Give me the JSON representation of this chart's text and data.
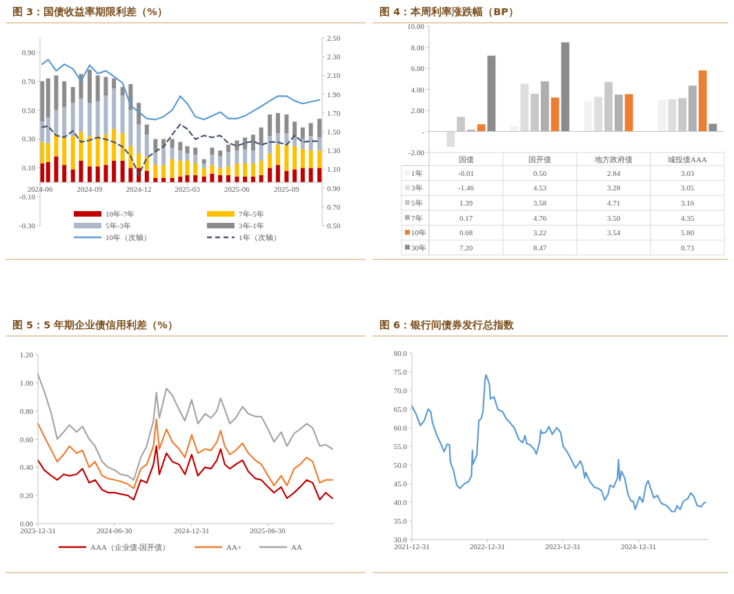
{
  "chart_data": [
    {
      "type": "bar",
      "title": "图 3：国债收益率期限利差（%）",
      "stacked": true,
      "legend": "bottom",
      "x": [
        "2024-06-05",
        "2024-06-16",
        "2024-07-01",
        "2024-07-16",
        "2024-08-01",
        "2024-08-16",
        "2024-09-01",
        "2024-09-16",
        "2024-10-01",
        "2024-10-16",
        "2024-11-01",
        "2024-11-16",
        "2024-12-01",
        "2024-12-16",
        "2025-01-01",
        "2025-01-16",
        "2025-02-01",
        "2025-02-16",
        "2025-03-01",
        "2025-03-16",
        "2025-04-01",
        "2025-04-16",
        "2025-05-01",
        "2025-05-16",
        "2025-06-01",
        "2025-06-16",
        "2025-07-01",
        "2025-07-16",
        "2025-08-01",
        "2025-08-16",
        "2025-09-01",
        "2025-09-16",
        "2025-10-01",
        "2025-10-16",
        "2025-11-01"
      ],
      "xlim": [
        "2024-06-01",
        "2025-11-06"
      ],
      "xticks": [
        "2024-06",
        "2024-09",
        "2024-12",
        "2025-03",
        "2025-06",
        "2025-09"
      ],
      "ylim": [
        -0.3,
        1.0
      ],
      "yticks": [
        {
          "value": 0.9,
          "label": "0.90"
        },
        {
          "value": 0.7,
          "label": "0.70"
        },
        {
          "value": 0.5,
          "label": "0.50"
        },
        {
          "value": 0.3,
          "label": "0.30"
        },
        {
          "value": 0.1,
          "label": "0.10"
        },
        {
          "value": -0.1,
          "label": "-0.10"
        },
        {
          "value": -0.3,
          "label": "-0.30"
        }
      ],
      "y2lim": [
        0.5,
        2.5
      ],
      "y2ticks": [
        {
          "value": 0.5,
          "label": "0.50"
        },
        {
          "value": 0.7,
          "label": "0.70"
        },
        {
          "value": 0.9,
          "label": "0.90"
        },
        {
          "value": 1.1,
          "label": "1.10"
        },
        {
          "value": 1.3,
          "label": "1.30"
        },
        {
          "value": 1.5,
          "label": "1.50"
        },
        {
          "value": 1.7,
          "label": "1.70"
        },
        {
          "value": 1.9,
          "label": "1.90"
        },
        {
          "value": 2.1,
          "label": "2.10"
        },
        {
          "value": 2.3,
          "label": "2.30"
        },
        {
          "value": 2.5,
          "label": "2.50"
        }
      ],
      "series": [
        {
          "name": "10年-7年",
          "color": "#c00000",
          "values": [
            0.13,
            0.14,
            0.18,
            0.12,
            0.09,
            0.15,
            0.11,
            0.11,
            0.12,
            0.15,
            0.15,
            0.1,
            0.1,
            0.08,
            0.03,
            0.03,
            0.03,
            0.04,
            0.05,
            0.05,
            0.04,
            0.06,
            0.05,
            0.05,
            0.04,
            0.04,
            0.04,
            0.05,
            0.1,
            0.12,
            0.08,
            0.09,
            0.1,
            0.1,
            0.1
          ]
        },
        {
          "name": "7年-5年",
          "color": "#ffc000",
          "values": [
            0.15,
            0.13,
            0.15,
            0.19,
            0.23,
            0.2,
            0.21,
            0.21,
            0.21,
            0.22,
            0.19,
            0.15,
            0.1,
            0.1,
            0.09,
            0.09,
            0.13,
            0.11,
            0.1,
            0.08,
            0.06,
            0.06,
            0.05,
            0.06,
            0.09,
            0.09,
            0.09,
            0.1,
            0.1,
            0.14,
            0.18,
            0.16,
            0.13,
            0.12,
            0.12
          ]
        },
        {
          "name": "5年-3年",
          "color": "#adb9ca",
          "values": [
            0.14,
            0.18,
            0.17,
            0.21,
            0.23,
            0.23,
            0.23,
            0.24,
            0.27,
            0.28,
            0.26,
            0.25,
            0.2,
            0.15,
            0.1,
            0.13,
            0.08,
            0.07,
            0.05,
            0.06,
            0.03,
            0.07,
            0.08,
            0.1,
            0.09,
            0.1,
            0.09,
            0.11,
            0.12,
            0.08,
            0.08,
            0.06,
            0.07,
            0.1,
            0.09
          ]
        },
        {
          "name": "3年-1年",
          "color": "#8c8c8c",
          "values": [
            0.28,
            0.27,
            0.24,
            0.18,
            0.11,
            0.17,
            0.23,
            0.18,
            0.13,
            0.07,
            0.06,
            0.18,
            0.15,
            0.07,
            0.08,
            0.05,
            0.06,
            0.06,
            0.05,
            0.05,
            0.03,
            0.05,
            0.04,
            0.05,
            0.07,
            0.08,
            0.11,
            0.12,
            0.15,
            0.14,
            0.13,
            0.11,
            0.08,
            0.09,
            0.13
          ]
        },
        {
          "name": "10年（次轴）",
          "type": "line",
          "axis": "y2",
          "color": "#5b9bd5",
          "line_style": "solid",
          "values": [
            2.22,
            2.27,
            2.15,
            2.22,
            2.17,
            2.04,
            2.21,
            2.12,
            2.15,
            2.09,
            2.02,
            1.78,
            1.71,
            1.64,
            1.63,
            1.66,
            1.73,
            1.88,
            1.8,
            1.66,
            1.63,
            1.67,
            1.71,
            1.64,
            1.64,
            1.67,
            1.72,
            1.77,
            1.83,
            1.88,
            1.88,
            1.83,
            1.8,
            1.82,
            1.84
          ]
        },
        {
          "name": "1年（次轴）",
          "type": "line",
          "axis": "y2",
          "color": "#44546a",
          "line_style": "dashed",
          "values": [
            1.55,
            1.56,
            1.46,
            1.44,
            1.51,
            1.39,
            1.41,
            1.44,
            1.42,
            1.39,
            1.34,
            1.24,
            1.04,
            1.22,
            1.29,
            1.34,
            1.47,
            1.58,
            1.53,
            1.42,
            1.46,
            1.44,
            1.46,
            1.38,
            1.35,
            1.38,
            1.4,
            1.36,
            1.39,
            1.39,
            1.36,
            1.46,
            1.39,
            1.4,
            1.4
          ]
        }
      ]
    },
    {
      "type": "bar",
      "title": "图 4：本周利率涨跌幅（BP）",
      "legend": "bottom",
      "categories": [
        "国债",
        "国开债",
        "地方政府债",
        "城投债AAA"
      ],
      "ylim": [
        -2,
        10
      ],
      "yticks": [
        {
          "value": 10,
          "label": "10.00"
        },
        {
          "value": 8,
          "label": "8.00"
        },
        {
          "value": 6,
          "label": "6.00"
        },
        {
          "value": 4,
          "label": "4.00"
        },
        {
          "value": 2,
          "label": "2.00"
        },
        {
          "value": 0,
          "label": "-"
        },
        {
          "value": -2,
          "label": "-2.00"
        }
      ],
      "series": [
        {
          "name": "1年",
          "color": "#f2f2f2",
          "values": [
            -0.01,
            0.5,
            2.84,
            3.03
          ],
          "value_labels": [
            "-0.01",
            "0.50",
            "2.84",
            "3.03"
          ]
        },
        {
          "name": "3年",
          "color": "#dedede",
          "values": [
            -1.46,
            4.53,
            3.28,
            3.05
          ],
          "value_labels": [
            "-1.46",
            "4.53",
            "3.28",
            "3.05"
          ]
        },
        {
          "name": "5年",
          "color": "#c8c8c8",
          "values": [
            1.39,
            3.58,
            4.71,
            3.16
          ],
          "value_labels": [
            "1.39",
            "3.58",
            "4.71",
            "3.16"
          ]
        },
        {
          "name": "7年",
          "color": "#afafaf",
          "values": [
            0.17,
            4.76,
            3.5,
            4.35
          ],
          "value_labels": [
            "0.17",
            "4.76",
            "3.50",
            "4.35"
          ]
        },
        {
          "name": "10年",
          "color": "#ed7d31",
          "values": [
            0.68,
            3.22,
            3.54,
            5.8
          ],
          "value_labels": [
            "0.68",
            "3.22",
            "3.54",
            "5.80"
          ]
        },
        {
          "name": "30年",
          "color": "#8c8c8c",
          "values": [
            7.2,
            8.47,
            null,
            0.73
          ],
          "value_labels": [
            "7.20",
            "8.47",
            null,
            "0.73"
          ]
        }
      ]
    },
    {
      "type": "line",
      "title": "图 5：5 年期企业债信用利差（%）",
      "legend": "bottom",
      "x": [
        "2023-12-31",
        "2024-01-15",
        "2024-02-01",
        "2024-02-15",
        "2024-03-01",
        "2024-03-15",
        "2024-04-01",
        "2024-04-15",
        "2024-05-01",
        "2024-05-15",
        "2024-06-01",
        "2024-06-15",
        "2024-07-01",
        "2024-07-15",
        "2024-08-01",
        "2024-08-15",
        "2024-09-01",
        "2024-09-15",
        "2024-10-01",
        "2024-10-08",
        "2024-10-15",
        "2024-11-01",
        "2024-11-15",
        "2024-12-01",
        "2024-12-15",
        "2024-12-31",
        "2025-01-15",
        "2025-02-01",
        "2025-02-15",
        "2025-03-01",
        "2025-03-10",
        "2025-03-20",
        "2025-04-01",
        "2025-04-15",
        "2025-05-01",
        "2025-05-15",
        "2025-06-01",
        "2025-06-15",
        "2025-07-01",
        "2025-07-15",
        "2025-08-01",
        "2025-08-15",
        "2025-09-01",
        "2025-09-15",
        "2025-10-01",
        "2025-10-15",
        "2025-11-01",
        "2025-11-15",
        "2025-12-01"
      ],
      "xlim": [
        "2023-12-31",
        "2025-12-03"
      ],
      "xticks": [
        "2023-12-31",
        "2024-06-30",
        "2024-12-31",
        "2025-06-30"
      ],
      "ylim": [
        0,
        1.2
      ],
      "yticks": [
        {
          "value": 0,
          "label": "0.00"
        },
        {
          "value": 0.2,
          "label": "0.20"
        },
        {
          "value": 0.4,
          "label": "0.40"
        },
        {
          "value": 0.6,
          "label": "0.60"
        },
        {
          "value": 0.8,
          "label": "0.80"
        },
        {
          "value": 1.0,
          "label": "1.00"
        },
        {
          "value": 1.2,
          "label": "1.20"
        }
      ],
      "series": [
        {
          "name": "AAA（企业债-国开债）",
          "color": "#c00000",
          "values": [
            0.45,
            0.38,
            0.34,
            0.31,
            0.35,
            0.34,
            0.35,
            0.39,
            0.29,
            0.31,
            0.24,
            0.22,
            0.22,
            0.21,
            0.2,
            0.17,
            0.31,
            0.29,
            0.42,
            0.55,
            0.35,
            0.5,
            0.44,
            0.42,
            0.35,
            0.49,
            0.34,
            0.4,
            0.39,
            0.45,
            0.53,
            0.42,
            0.39,
            0.42,
            0.45,
            0.37,
            0.32,
            0.31,
            0.26,
            0.22,
            0.26,
            0.18,
            0.22,
            0.26,
            0.31,
            0.29,
            0.17,
            0.22,
            0.18
          ]
        },
        {
          "name": "AA+",
          "color": "#ed7d31",
          "values": [
            0.71,
            0.62,
            0.52,
            0.44,
            0.49,
            0.55,
            0.5,
            0.52,
            0.4,
            0.44,
            0.34,
            0.32,
            0.31,
            0.3,
            0.28,
            0.25,
            0.39,
            0.42,
            0.55,
            0.74,
            0.53,
            0.67,
            0.58,
            0.53,
            0.47,
            0.63,
            0.5,
            0.53,
            0.52,
            0.58,
            0.66,
            0.55,
            0.49,
            0.52,
            0.57,
            0.5,
            0.45,
            0.42,
            0.34,
            0.27,
            0.34,
            0.27,
            0.39,
            0.42,
            0.47,
            0.44,
            0.29,
            0.31,
            0.31
          ]
        },
        {
          "name": "AA",
          "color": "#a5a5a5",
          "values": [
            1.06,
            0.94,
            0.78,
            0.6,
            0.65,
            0.7,
            0.65,
            0.69,
            0.6,
            0.55,
            0.44,
            0.4,
            0.38,
            0.35,
            0.34,
            0.31,
            0.47,
            0.55,
            0.73,
            0.93,
            0.75,
            0.96,
            0.91,
            0.81,
            0.73,
            0.88,
            0.71,
            0.78,
            0.75,
            0.8,
            0.89,
            0.81,
            0.71,
            0.75,
            0.83,
            0.78,
            0.76,
            0.76,
            0.67,
            0.58,
            0.65,
            0.55,
            0.64,
            0.67,
            0.71,
            0.68,
            0.55,
            0.56,
            0.53
          ]
        }
      ]
    },
    {
      "type": "line",
      "title": "图 6：银行间债券发行总指数",
      "color": "#5b9bd5",
      "x": [
        "2021-12-31",
        "2022-01-20",
        "2022-02-10",
        "2022-03-01",
        "2022-03-20",
        "2022-04-01",
        "2022-04-10",
        "2022-05-01",
        "2022-05-20",
        "2022-06-05",
        "2022-06-20",
        "2022-07-01",
        "2022-07-05",
        "2022-07-20",
        "2022-08-05",
        "2022-08-20",
        "2022-09-10",
        "2022-10-01",
        "2022-10-15",
        "2022-10-20",
        "2022-10-22",
        "2022-11-10",
        "2022-11-20",
        "2022-12-01",
        "2022-12-10",
        "2022-12-20",
        "2022-12-25",
        "2023-01-10",
        "2023-01-15",
        "2023-02-01",
        "2023-02-20",
        "2023-03-15",
        "2023-04-01",
        "2023-04-20",
        "2023-05-10",
        "2023-06-01",
        "2023-06-20",
        "2023-07-01",
        "2023-07-10",
        "2023-07-25",
        "2023-08-15",
        "2023-08-25",
        "2023-09-10",
        "2023-09-15",
        "2023-09-20",
        "2023-10-10",
        "2023-10-25",
        "2023-11-10",
        "2023-12-01",
        "2023-12-20",
        "2024-01-01",
        "2024-01-20",
        "2024-02-10",
        "2024-03-01",
        "2024-03-15",
        "2024-03-25",
        "2024-04-05",
        "2024-04-15",
        "2024-04-20",
        "2024-05-10",
        "2024-06-01",
        "2024-06-20",
        "2024-07-05",
        "2024-07-20",
        "2024-08-05",
        "2024-08-15",
        "2024-09-01",
        "2024-09-20",
        "2024-09-25",
        "2024-10-01",
        "2024-10-10",
        "2024-10-25",
        "2024-11-10",
        "2024-11-25",
        "2024-12-05",
        "2024-12-15",
        "2025-01-05",
        "2025-01-20",
        "2025-02-05",
        "2025-02-15",
        "2025-03-05",
        "2025-03-15",
        "2025-04-01",
        "2025-04-20",
        "2025-05-15",
        "2025-06-10",
        "2025-06-25",
        "2025-07-05",
        "2025-07-20",
        "2025-08-05",
        "2025-08-25",
        "2025-09-10",
        "2025-09-25",
        "2025-10-10",
        "2025-10-30",
        "2025-11-10",
        "2025-11-20"
      ],
      "values": [
        65.9,
        63.7,
        60.6,
        61.9,
        65.0,
        64.3,
        61.3,
        57.9,
        55.7,
        53.6,
        55.6,
        55.4,
        50.8,
        48.6,
        44.6,
        43.7,
        44.9,
        45.5,
        47.1,
        53.9,
        50.2,
        52.6,
        61.9,
        62.5,
        64.3,
        73.0,
        74.2,
        71.7,
        67.7,
        68.3,
        64.9,
        64.3,
        62.5,
        61.3,
        60.0,
        56.9,
        56.0,
        57.9,
        55.7,
        55.4,
        54.2,
        52.9,
        56.3,
        59.4,
        58.5,
        58.8,
        60.3,
        58.2,
        60.0,
        58.8,
        55.1,
        53.6,
        51.4,
        49.2,
        50.2,
        51.1,
        49.5,
        46.5,
        48.0,
        45.5,
        44.0,
        43.7,
        43.1,
        40.6,
        42.1,
        44.6,
        44.0,
        46.5,
        51.4,
        45.8,
        48.3,
        46.5,
        42.1,
        40.3,
        40.3,
        38.1,
        41.5,
        40.0,
        44.6,
        45.8,
        42.8,
        41.2,
        41.8,
        39.7,
        39.1,
        37.5,
        37.5,
        39.1,
        38.1,
        40.3,
        40.9,
        42.5,
        41.5,
        39.1,
        38.8,
        39.7,
        40.0
      ],
      "xlim": [
        "2021-12-31",
        "2025-12-04"
      ],
      "xticks": [
        "2021-12-31",
        "2022-12-31",
        "2023-12-31",
        "2024-12-31"
      ],
      "ylim": [
        30,
        80
      ],
      "yticks": [
        {
          "value": 30,
          "label": "30.0"
        },
        {
          "value": 35,
          "label": "35.0"
        },
        {
          "value": 40,
          "label": "40.0"
        },
        {
          "value": 45,
          "label": "45.0"
        },
        {
          "value": 50,
          "label": "50.0"
        },
        {
          "value": 55,
          "label": "55.0"
        },
        {
          "value": 60,
          "label": "60.0"
        },
        {
          "value": 65,
          "label": "65.0"
        },
        {
          "value": 70,
          "label": "70.0"
        },
        {
          "value": 75,
          "label": "75.0"
        },
        {
          "value": 80,
          "label": "80.0"
        }
      ]
    }
  ]
}
